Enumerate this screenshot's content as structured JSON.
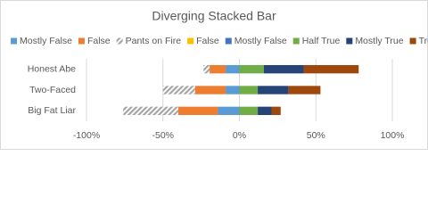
{
  "chart_data": {
    "type": "diverging-bar",
    "title": "Diverging Stacked Bar",
    "categories": [
      "Honest Abe",
      "Two-Faced",
      "Big Fat Liar"
    ],
    "series": [
      {
        "name": "Mostly False",
        "color": "#5b9bd5",
        "values": [
          -9,
          -9,
          -14
        ]
      },
      {
        "name": "False",
        "color": "#ed7d31",
        "values": [
          -10.5,
          -20,
          -26
        ]
      },
      {
        "name": "Pants on Fire",
        "color": "#a5a5a5",
        "hatch": true,
        "values": [
          -4,
          -21,
          -36
        ]
      },
      {
        "name": "False",
        "color": "#ffc000",
        "values": [
          0,
          0,
          0
        ]
      },
      {
        "name": "Mostly False",
        "color": "#4472c4",
        "values": [
          0,
          0,
          0
        ]
      },
      {
        "name": "Half True",
        "color": "#70ad47",
        "values": [
          16,
          12,
          12
        ]
      },
      {
        "name": "Mostly True",
        "color": "#264478",
        "values": [
          26,
          20,
          9
        ]
      },
      {
        "name": "True",
        "color": "#9e480e",
        "values": [
          36,
          21,
          6
        ]
      }
    ],
    "xlim": [
      -100,
      100
    ],
    "xticks": [
      {
        "value": -100,
        "label": "-100%"
      },
      {
        "value": -50,
        "label": "-50%"
      },
      {
        "value": 0,
        "label": "0%"
      },
      {
        "value": 50,
        "label": "50%"
      },
      {
        "value": 100,
        "label": "100%"
      }
    ],
    "grid": true
  }
}
